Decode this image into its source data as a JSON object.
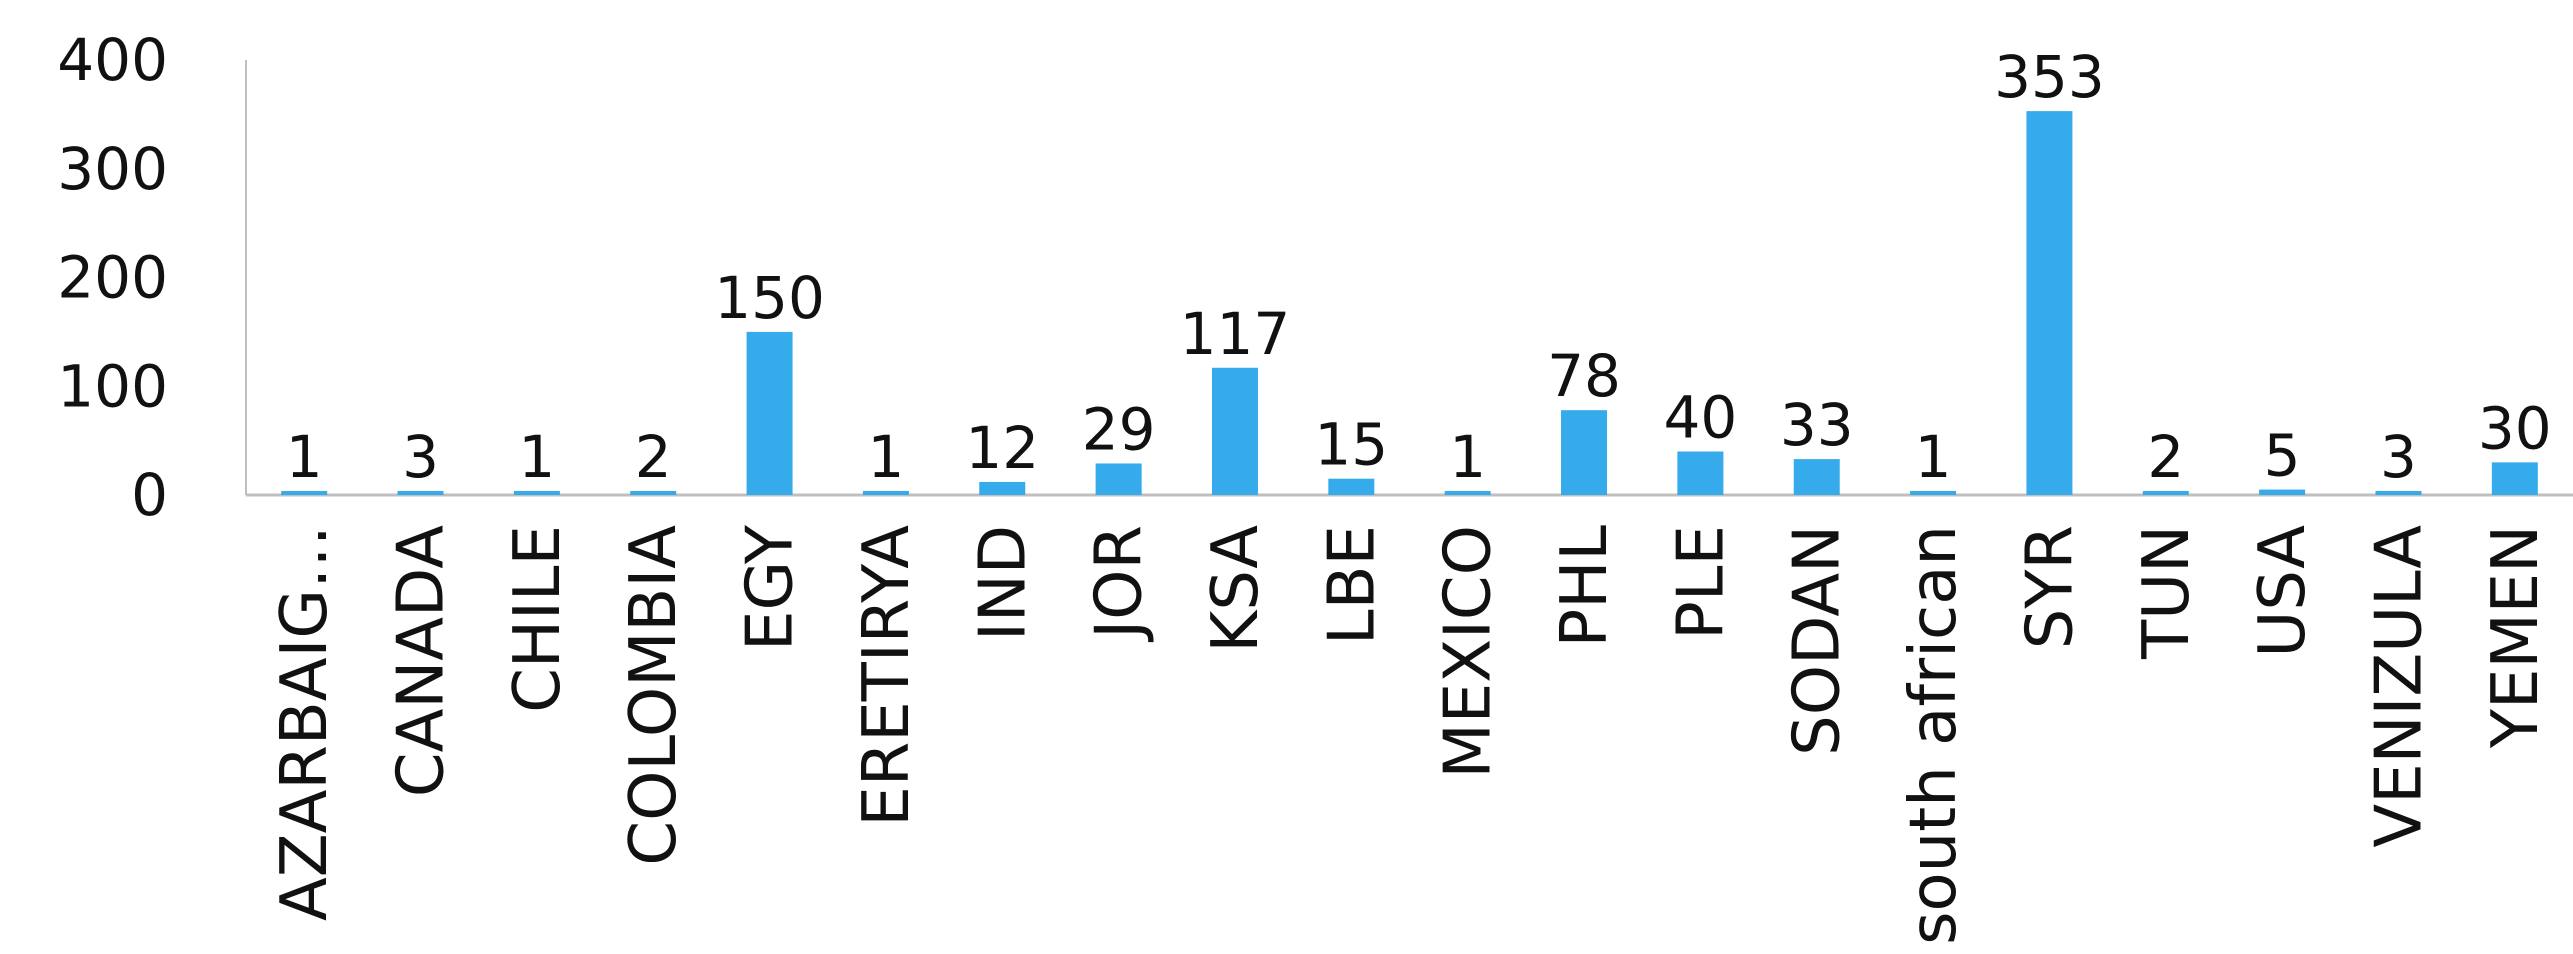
{
  "chart_data": {
    "type": "bar",
    "title": "",
    "xlabel": "",
    "ylabel": "",
    "categories": [
      "AZARBAIG…",
      "CANADA",
      "CHILE",
      "COLOMBIA",
      "EGY",
      "ERETIRYA",
      "IND",
      "JOR",
      "KSA",
      "LBE",
      "MEXICO",
      "PHL",
      "PLE",
      "SODAN",
      "south african",
      "SYR",
      "TUN",
      "USA",
      "VENIZULA",
      "YEMEN"
    ],
    "values": [
      1,
      3,
      1,
      2,
      150,
      1,
      12,
      29,
      117,
      15,
      1,
      78,
      40,
      33,
      1,
      353,
      2,
      5,
      3,
      30
    ],
    "data_labels": [
      "1",
      "3",
      "1",
      "2",
      "150",
      "1",
      "12",
      "29",
      "117",
      "15",
      "1",
      "78",
      "40",
      "33",
      "1",
      "353",
      "2",
      "5",
      "3",
      "30"
    ],
    "ylim": [
      0,
      400
    ],
    "yticks": [
      0,
      100,
      200,
      300,
      400
    ],
    "ytick_labels": [
      "0",
      "100",
      "200",
      "300",
      "400"
    ],
    "grid": false,
    "legend": "none",
    "bar_color": "#35ABEB",
    "axis_color": "#BFBFBF"
  }
}
